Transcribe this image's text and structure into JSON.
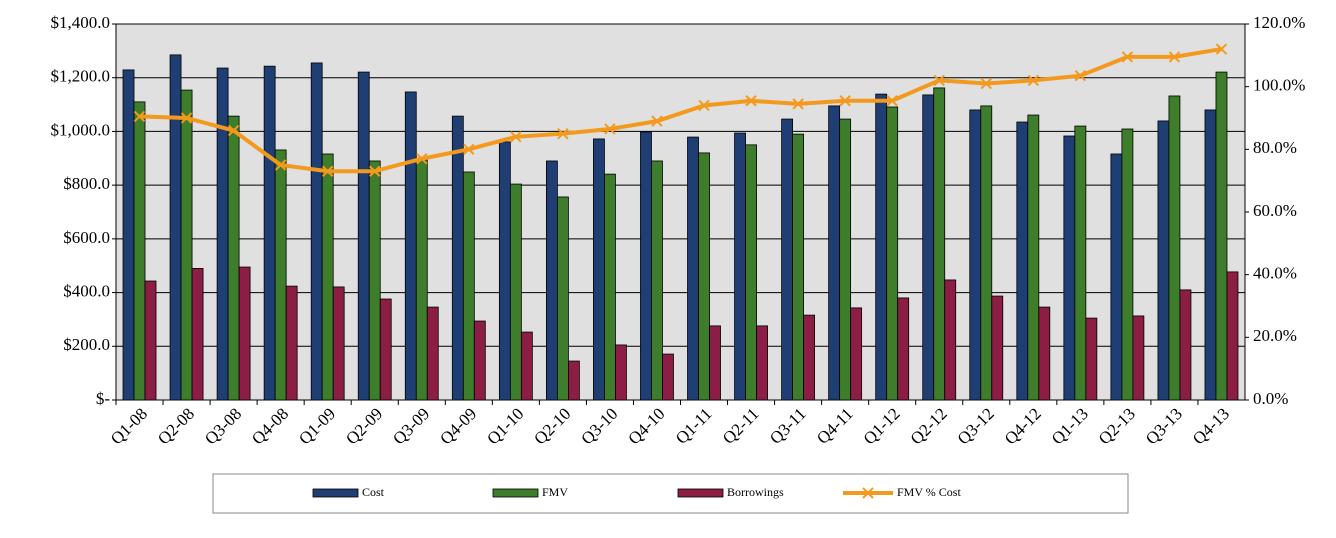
{
  "chart_data": {
    "type": "bar",
    "categories": [
      "Q1-08",
      "Q2-08",
      "Q3-08",
      "Q4-08",
      "Q1-09",
      "Q2-09",
      "Q3-09",
      "Q4-09",
      "Q1-10",
      "Q2-10",
      "Q3-10",
      "Q4-10",
      "Q1-11",
      "Q2-11",
      "Q3-11",
      "Q4-11",
      "Q1-12",
      "Q2-12",
      "Q3-12",
      "Q4-12",
      "Q1-13",
      "Q2-13",
      "Q3-13",
      "Q4-13"
    ],
    "series": [
      {
        "name": "Cost",
        "color": "#1f3f74",
        "values": [
          1229,
          1285,
          1236,
          1243,
          1255,
          1221,
          1147,
          1057,
          961,
          890,
          972,
          998,
          979,
          994,
          1046,
          1095,
          1139,
          1136,
          1080,
          1035,
          983,
          916,
          1039,
          1080
        ]
      },
      {
        "name": "FMV",
        "color": "#3d7d2b",
        "values": [
          1110,
          1154,
          1057,
          931,
          916,
          890,
          894,
          849,
          804,
          756,
          841,
          890,
          920,
          950,
          990,
          1046,
          1091,
          1162,
          1095,
          1061,
          1020,
          1009,
          1132,
          1221
        ]
      },
      {
        "name": "Borrowings",
        "color": "#8c1d45",
        "values": [
          443,
          490,
          495,
          424,
          421,
          376,
          346,
          294,
          253,
          145,
          205,
          171,
          276,
          276,
          316,
          343,
          380,
          447,
          387,
          346,
          305,
          313,
          410,
          477
        ]
      },
      {
        "name": "FMV % Cost",
        "color": "#f39a1e",
        "type": "line",
        "axis": "y2",
        "values": [
          90.5,
          90,
          86,
          75,
          73,
          73,
          77,
          80,
          84,
          85,
          86.5,
          89,
          94,
          95.5,
          94.5,
          95.5,
          95.5,
          102,
          101,
          102,
          103.5,
          109.5,
          109.5,
          112
        ]
      }
    ],
    "ylim": [
      0,
      1400
    ],
    "yticks": [
      {
        "value": 0,
        "label": "$-"
      },
      {
        "value": 200,
        "label": "$200.0"
      },
      {
        "value": 400,
        "label": "$400.0"
      },
      {
        "value": 600,
        "label": "$600.0"
      },
      {
        "value": 800,
        "label": "$800.0"
      },
      {
        "value": 1000,
        "label": "$1,000.0"
      },
      {
        "value": 1200,
        "label": "$1,200.0"
      },
      {
        "value": 1400,
        "label": "$1,400.0"
      }
    ],
    "y2lim": [
      0,
      120
    ],
    "y2ticks": [
      {
        "value": 0,
        "label": "0.0%"
      },
      {
        "value": 20,
        "label": "20.0%"
      },
      {
        "value": 40,
        "label": "40.0%"
      },
      {
        "value": 60,
        "label": "60.0%"
      },
      {
        "value": 80,
        "label": "80.0%"
      },
      {
        "value": 100,
        "label": "100.0%"
      },
      {
        "value": 120,
        "label": "120.0%"
      }
    ],
    "grid": true,
    "legend": "bottom"
  }
}
